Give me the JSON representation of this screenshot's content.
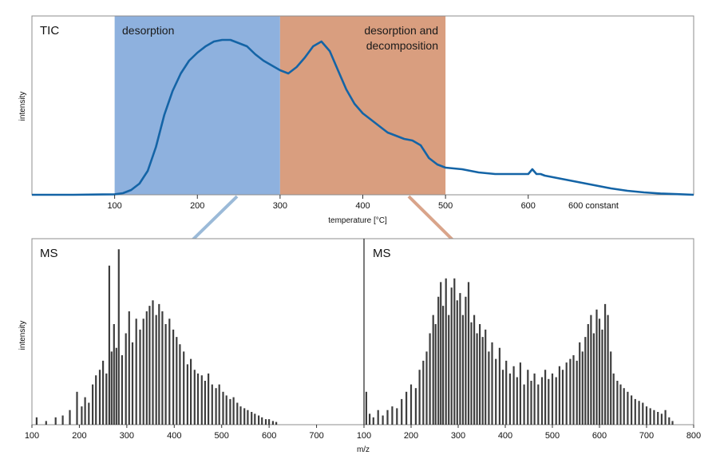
{
  "colors": {
    "desorption_band": "#8eb1de",
    "decomposition_band": "#d99e7f",
    "tic_line": "#1464a6",
    "ms_bars": "#1c1c1c",
    "connector_blue": "#9bbad8",
    "connector_orange": "#d9a48a",
    "frame": "#8c8c8c"
  },
  "chart_data": [
    {
      "type": "line",
      "title": "TIC",
      "xlabel": "temperature [°C]",
      "ylabel": "intensity",
      "x_ticks": [
        "100",
        "200",
        "300",
        "400",
        "500",
        "600",
        "600 constant"
      ],
      "xlim": [
        0,
        800
      ],
      "bands": [
        {
          "label": "desorption",
          "range": [
            100,
            300
          ]
        },
        {
          "label": "desorption and\ndecomposition",
          "label_lines": [
            "desorption and",
            "decomposition"
          ],
          "range": [
            300,
            500
          ]
        }
      ],
      "series": [
        {
          "x": [
            0,
            50,
            100,
            110,
            120,
            130,
            140,
            150,
            160,
            170,
            180,
            190,
            200,
            210,
            220,
            230,
            240,
            250,
            260,
            270,
            280,
            290,
            300,
            310,
            320,
            330,
            340,
            350,
            360,
            370,
            380,
            390,
            400,
            410,
            420,
            430,
            440,
            450,
            460,
            470,
            480,
            490,
            500,
            520,
            540,
            560,
            580,
            600,
            605,
            610,
            615,
            620,
            640,
            660,
            680,
            700,
            720,
            740,
            760,
            780,
            800
          ],
          "y": [
            0,
            0,
            0.3,
            1,
            3,
            7,
            15,
            30,
            50,
            65,
            76,
            84,
            89,
            93,
            96,
            97,
            97,
            95,
            93,
            88,
            84,
            81,
            78,
            76,
            80,
            86,
            93,
            96,
            90,
            78,
            66,
            57,
            51,
            47,
            43,
            39,
            37,
            35,
            34,
            31,
            23,
            19,
            17,
            16,
            14,
            13,
            13,
            13,
            16,
            13,
            13,
            12,
            10,
            8,
            6,
            4,
            2.5,
            1.5,
            0.8,
            0.4,
            0
          ]
        }
      ]
    },
    {
      "type": "bar",
      "title": "MS",
      "xlabel": "m/z",
      "ylabel": "intensity",
      "x_ticks": [
        "100",
        "200",
        "300",
        "400",
        "500",
        "600",
        "700"
      ],
      "xlim": [
        100,
        800
      ],
      "peaks": [
        {
          "x": 110,
          "y": 4
        },
        {
          "x": 130,
          "y": 2
        },
        {
          "x": 150,
          "y": 4
        },
        {
          "x": 165,
          "y": 5
        },
        {
          "x": 180,
          "y": 8
        },
        {
          "x": 195,
          "y": 18
        },
        {
          "x": 205,
          "y": 10
        },
        {
          "x": 212,
          "y": 15
        },
        {
          "x": 220,
          "y": 12
        },
        {
          "x": 228,
          "y": 22
        },
        {
          "x": 235,
          "y": 27
        },
        {
          "x": 243,
          "y": 30
        },
        {
          "x": 250,
          "y": 35
        },
        {
          "x": 257,
          "y": 28
        },
        {
          "x": 263,
          "y": 87
        },
        {
          "x": 268,
          "y": 40
        },
        {
          "x": 273,
          "y": 55
        },
        {
          "x": 278,
          "y": 42
        },
        {
          "x": 283,
          "y": 96
        },
        {
          "x": 290,
          "y": 38
        },
        {
          "x": 298,
          "y": 50
        },
        {
          "x": 305,
          "y": 62
        },
        {
          "x": 312,
          "y": 45
        },
        {
          "x": 320,
          "y": 58
        },
        {
          "x": 328,
          "y": 52
        },
        {
          "x": 335,
          "y": 58
        },
        {
          "x": 342,
          "y": 62
        },
        {
          "x": 348,
          "y": 65
        },
        {
          "x": 355,
          "y": 68
        },
        {
          "x": 362,
          "y": 60
        },
        {
          "x": 368,
          "y": 66
        },
        {
          "x": 375,
          "y": 62
        },
        {
          "x": 382,
          "y": 55
        },
        {
          "x": 390,
          "y": 58
        },
        {
          "x": 398,
          "y": 52
        },
        {
          "x": 405,
          "y": 48
        },
        {
          "x": 412,
          "y": 44
        },
        {
          "x": 420,
          "y": 40
        },
        {
          "x": 428,
          "y": 33
        },
        {
          "x": 435,
          "y": 36
        },
        {
          "x": 443,
          "y": 30
        },
        {
          "x": 450,
          "y": 28
        },
        {
          "x": 458,
          "y": 27
        },
        {
          "x": 465,
          "y": 24
        },
        {
          "x": 472,
          "y": 28
        },
        {
          "x": 480,
          "y": 22
        },
        {
          "x": 488,
          "y": 20
        },
        {
          "x": 495,
          "y": 22
        },
        {
          "x": 503,
          "y": 18
        },
        {
          "x": 510,
          "y": 16
        },
        {
          "x": 518,
          "y": 14
        },
        {
          "x": 525,
          "y": 15
        },
        {
          "x": 533,
          "y": 12
        },
        {
          "x": 540,
          "y": 10
        },
        {
          "x": 548,
          "y": 9
        },
        {
          "x": 555,
          "y": 8
        },
        {
          "x": 563,
          "y": 7
        },
        {
          "x": 570,
          "y": 6
        },
        {
          "x": 578,
          "y": 5
        },
        {
          "x": 585,
          "y": 4
        },
        {
          "x": 593,
          "y": 3
        },
        {
          "x": 600,
          "y": 3
        },
        {
          "x": 608,
          "y": 2
        },
        {
          "x": 615,
          "y": 1.5
        }
      ]
    },
    {
      "type": "bar",
      "title": "MS",
      "xlabel": "m/z",
      "ylabel": "intensity",
      "x_ticks": [
        "100",
        "200",
        "300",
        "400",
        "500",
        "600",
        "700",
        "800"
      ],
      "xlim": [
        100,
        800
      ],
      "peaks": [
        {
          "x": 105,
          "y": 18
        },
        {
          "x": 112,
          "y": 6
        },
        {
          "x": 120,
          "y": 4
        },
        {
          "x": 130,
          "y": 8
        },
        {
          "x": 140,
          "y": 5
        },
        {
          "x": 150,
          "y": 8
        },
        {
          "x": 160,
          "y": 10
        },
        {
          "x": 170,
          "y": 9
        },
        {
          "x": 180,
          "y": 14
        },
        {
          "x": 190,
          "y": 18
        },
        {
          "x": 200,
          "y": 22
        },
        {
          "x": 210,
          "y": 20
        },
        {
          "x": 218,
          "y": 30
        },
        {
          "x": 226,
          "y": 35
        },
        {
          "x": 233,
          "y": 40
        },
        {
          "x": 240,
          "y": 50
        },
        {
          "x": 247,
          "y": 60
        },
        {
          "x": 252,
          "y": 55
        },
        {
          "x": 258,
          "y": 70
        },
        {
          "x": 263,
          "y": 78
        },
        {
          "x": 268,
          "y": 65
        },
        {
          "x": 274,
          "y": 80
        },
        {
          "x": 280,
          "y": 60
        },
        {
          "x": 286,
          "y": 75
        },
        {
          "x": 292,
          "y": 80
        },
        {
          "x": 298,
          "y": 68
        },
        {
          "x": 304,
          "y": 72
        },
        {
          "x": 310,
          "y": 60
        },
        {
          "x": 316,
          "y": 70
        },
        {
          "x": 322,
          "y": 78
        },
        {
          "x": 328,
          "y": 56
        },
        {
          "x": 334,
          "y": 60
        },
        {
          "x": 340,
          "y": 50
        },
        {
          "x": 346,
          "y": 55
        },
        {
          "x": 352,
          "y": 48
        },
        {
          "x": 358,
          "y": 52
        },
        {
          "x": 365,
          "y": 40
        },
        {
          "x": 372,
          "y": 45
        },
        {
          "x": 380,
          "y": 36
        },
        {
          "x": 388,
          "y": 42
        },
        {
          "x": 395,
          "y": 30
        },
        {
          "x": 402,
          "y": 35
        },
        {
          "x": 410,
          "y": 28
        },
        {
          "x": 418,
          "y": 32
        },
        {
          "x": 425,
          "y": 26
        },
        {
          "x": 432,
          "y": 34
        },
        {
          "x": 440,
          "y": 22
        },
        {
          "x": 448,
          "y": 30
        },
        {
          "x": 455,
          "y": 24
        },
        {
          "x": 462,
          "y": 28
        },
        {
          "x": 470,
          "y": 22
        },
        {
          "x": 478,
          "y": 26
        },
        {
          "x": 485,
          "y": 30
        },
        {
          "x": 492,
          "y": 25
        },
        {
          "x": 500,
          "y": 28
        },
        {
          "x": 508,
          "y": 26
        },
        {
          "x": 515,
          "y": 32
        },
        {
          "x": 522,
          "y": 30
        },
        {
          "x": 530,
          "y": 34
        },
        {
          "x": 538,
          "y": 36
        },
        {
          "x": 545,
          "y": 38
        },
        {
          "x": 552,
          "y": 35
        },
        {
          "x": 558,
          "y": 45
        },
        {
          "x": 564,
          "y": 40
        },
        {
          "x": 570,
          "y": 48
        },
        {
          "x": 576,
          "y": 55
        },
        {
          "x": 582,
          "y": 60
        },
        {
          "x": 588,
          "y": 50
        },
        {
          "x": 594,
          "y": 63
        },
        {
          "x": 600,
          "y": 58
        },
        {
          "x": 606,
          "y": 52
        },
        {
          "x": 612,
          "y": 66
        },
        {
          "x": 618,
          "y": 60
        },
        {
          "x": 624,
          "y": 40
        },
        {
          "x": 630,
          "y": 28
        },
        {
          "x": 638,
          "y": 24
        },
        {
          "x": 645,
          "y": 22
        },
        {
          "x": 652,
          "y": 20
        },
        {
          "x": 660,
          "y": 18
        },
        {
          "x": 668,
          "y": 16
        },
        {
          "x": 676,
          "y": 14
        },
        {
          "x": 684,
          "y": 13
        },
        {
          "x": 692,
          "y": 12
        },
        {
          "x": 700,
          "y": 10
        },
        {
          "x": 708,
          "y": 9
        },
        {
          "x": 716,
          "y": 8
        },
        {
          "x": 724,
          "y": 7
        },
        {
          "x": 732,
          "y": 6
        },
        {
          "x": 740,
          "y": 8
        },
        {
          "x": 748,
          "y": 4
        },
        {
          "x": 755,
          "y": 2
        }
      ]
    }
  ]
}
